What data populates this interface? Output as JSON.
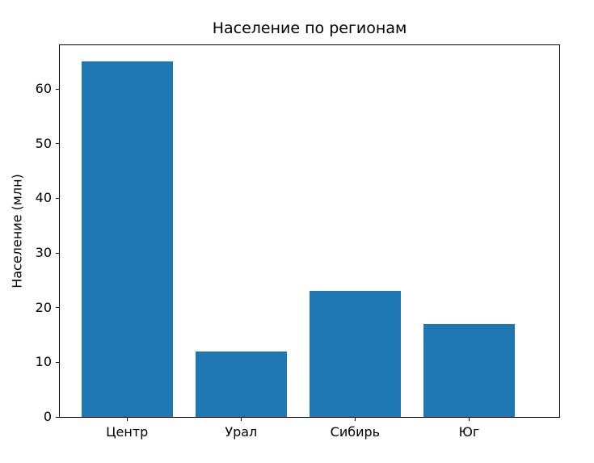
{
  "chart_data": {
    "type": "bar",
    "title": "Население по регионам",
    "xlabel": "",
    "ylabel": "Население (млн)",
    "categories": [
      "Центр",
      "Урал",
      "Сибирь",
      "Юг"
    ],
    "values": [
      65,
      12,
      23,
      17
    ],
    "yticks": [
      0,
      10,
      20,
      30,
      40,
      50,
      60
    ],
    "ylim": [
      0,
      68
    ],
    "grid": false,
    "legend": null,
    "bar_color": "#1f77b4",
    "text_color": "#000000",
    "background_color": "#ffffff"
  }
}
